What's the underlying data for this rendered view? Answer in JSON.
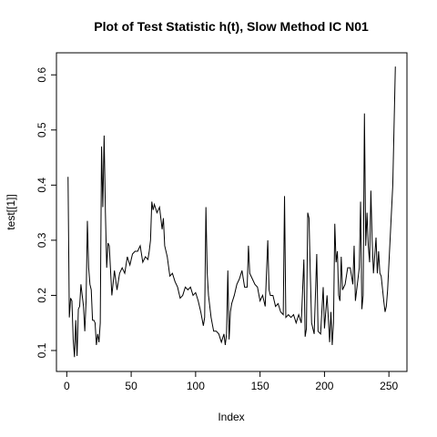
{
  "chart_data": {
    "type": "line",
    "title": "Plot of Test Statistic h(t), Slow Method IC N01",
    "x_label": "Index",
    "y_label": "test[[1]]",
    "color": "#000000",
    "x": [
      1,
      2,
      3,
      4,
      5,
      6,
      7,
      8,
      9,
      10,
      11,
      12,
      13,
      14,
      15,
      16,
      17,
      18,
      19,
      20,
      21,
      22,
      23,
      24,
      25,
      26,
      27,
      28,
      29,
      30,
      31,
      32,
      33,
      35,
      37,
      39,
      41,
      43,
      45,
      47,
      49,
      51,
      53,
      55,
      57,
      59,
      61,
      63,
      64,
      65,
      66,
      67,
      68,
      70,
      72,
      74,
      75,
      76,
      78,
      80,
      82,
      84,
      86,
      88,
      90,
      92,
      94,
      96,
      98,
      100,
      102,
      104,
      106,
      107,
      108,
      109,
      110,
      112,
      114,
      116,
      118,
      120,
      122,
      123,
      124,
      125,
      126,
      127,
      128,
      130,
      132,
      134,
      136,
      138,
      140,
      141,
      142,
      144,
      146,
      148,
      150,
      152,
      154,
      156,
      157,
      158,
      160,
      162,
      164,
      166,
      168,
      169,
      170,
      172,
      174,
      176,
      178,
      180,
      182,
      184,
      185,
      186,
      187,
      188,
      189,
      190,
      192,
      194,
      195,
      197,
      199,
      200,
      202,
      204,
      205,
      206,
      207,
      208,
      209,
      210,
      211,
      212,
      213,
      214,
      216,
      218,
      220,
      222,
      223,
      224,
      226,
      227,
      228,
      229,
      230,
      231,
      232,
      233,
      234,
      235,
      236,
      237,
      238,
      240,
      241,
      242,
      243,
      244,
      246,
      247,
      248,
      249,
      253,
      255
    ],
    "values": [
      0.415,
      0.16,
      0.195,
      0.19,
      0.12,
      0.088,
      0.155,
      0.09,
      0.175,
      0.18,
      0.22,
      0.2,
      0.18,
      0.135,
      0.19,
      0.335,
      0.25,
      0.22,
      0.21,
      0.155,
      0.155,
      0.15,
      0.11,
      0.13,
      0.115,
      0.15,
      0.47,
      0.36,
      0.49,
      0.35,
      0.25,
      0.295,
      0.29,
      0.2,
      0.245,
      0.21,
      0.24,
      0.25,
      0.24,
      0.27,
      0.255,
      0.275,
      0.28,
      0.28,
      0.29,
      0.26,
      0.27,
      0.265,
      0.28,
      0.3,
      0.37,
      0.355,
      0.365,
      0.35,
      0.36,
      0.32,
      0.34,
      0.29,
      0.27,
      0.235,
      0.24,
      0.225,
      0.215,
      0.195,
      0.2,
      0.215,
      0.21,
      0.215,
      0.2,
      0.205,
      0.19,
      0.17,
      0.145,
      0.16,
      0.36,
      0.24,
      0.2,
      0.16,
      0.135,
      0.135,
      0.13,
      0.115,
      0.13,
      0.11,
      0.13,
      0.245,
      0.12,
      0.17,
      0.185,
      0.2,
      0.22,
      0.23,
      0.245,
      0.215,
      0.215,
      0.29,
      0.24,
      0.23,
      0.22,
      0.215,
      0.19,
      0.2,
      0.18,
      0.3,
      0.21,
      0.2,
      0.2,
      0.18,
      0.185,
      0.17,
      0.165,
      0.38,
      0.16,
      0.165,
      0.16,
      0.165,
      0.15,
      0.165,
      0.15,
      0.265,
      0.125,
      0.14,
      0.35,
      0.34,
      0.24,
      0.15,
      0.13,
      0.275,
      0.135,
      0.13,
      0.215,
      0.14,
      0.2,
      0.115,
      0.17,
      0.11,
      0.15,
      0.33,
      0.26,
      0.28,
      0.2,
      0.19,
      0.27,
      0.21,
      0.22,
      0.25,
      0.25,
      0.22,
      0.29,
      0.19,
      0.23,
      0.25,
      0.37,
      0.175,
      0.2,
      0.53,
      0.29,
      0.35,
      0.29,
      0.26,
      0.39,
      0.3,
      0.24,
      0.305,
      0.24,
      0.28,
      0.24,
      0.235,
      0.19,
      0.17,
      0.18,
      0.21,
      0.4,
      0.615
    ],
    "xlim": [
      -8,
      264
    ],
    "ylim": [
      0.062,
      0.64
    ],
    "xticks": [
      0,
      50,
      100,
      150,
      200,
      250
    ],
    "yticks": [
      0.1,
      0.2,
      0.3,
      0.4,
      0.5,
      0.6
    ]
  }
}
